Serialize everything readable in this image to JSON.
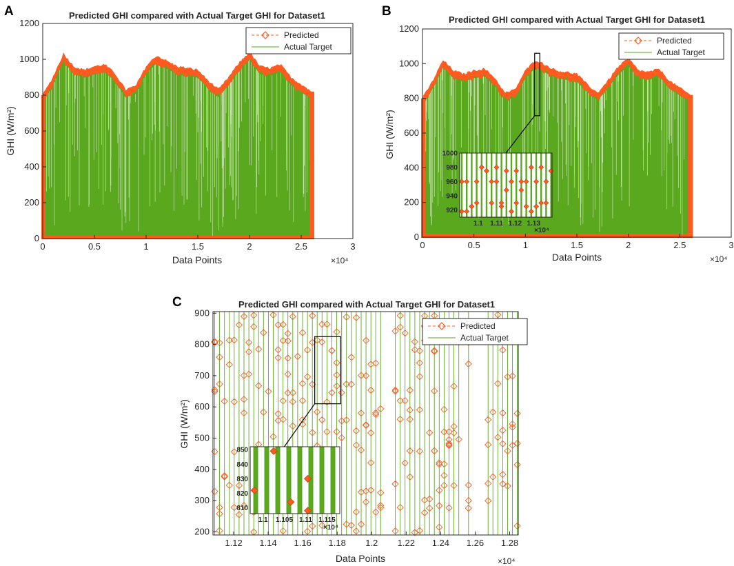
{
  "colors": {
    "predicted": "#ff5a1f",
    "actual": "#5aa81e",
    "axis": "#262626"
  },
  "chart_data": [
    {
      "panel": "A",
      "type": "line",
      "title": "Predicted GHI compared with Actual Target GHI for Dataset1",
      "xlabel": "Data Points",
      "ylabel": "GHI (W/m²)",
      "x_exponent": "×10⁴",
      "xlim": [
        0,
        3
      ],
      "ylim": [
        0,
        1200
      ],
      "xticks": [
        0,
        0.5,
        1,
        1.5,
        2,
        2.5,
        3
      ],
      "xtick_labels": [
        "0",
        "0.5",
        "1",
        "1.5",
        "2",
        "2.5",
        "3"
      ],
      "yticks": [
        0,
        200,
        400,
        600,
        800,
        1000,
        1200
      ],
      "ytick_labels": [
        "0",
        "200",
        "400",
        "600",
        "800",
        "1000",
        "1200"
      ],
      "legend": [
        "Predicted",
        "Actual Target"
      ],
      "legend_position": "top-right",
      "series": [
        {
          "name": "Predicted (daily peak envelope)",
          "x": [
            0,
            0.1,
            0.2,
            0.3,
            0.4,
            0.5,
            0.6,
            0.7,
            0.8,
            0.9,
            1.0,
            1.1,
            1.2,
            1.3,
            1.4,
            1.5,
            1.6,
            1.7,
            1.8,
            1.9,
            2.0,
            2.1,
            2.2,
            2.3,
            2.4,
            2.5,
            2.6
          ],
          "values": [
            800,
            900,
            1030,
            960,
            940,
            960,
            970,
            920,
            830,
            850,
            960,
            1020,
            990,
            960,
            950,
            940,
            880,
            830,
            900,
            980,
            1040,
            960,
            950,
            970,
            900,
            860,
            820
          ]
        },
        {
          "name": "Actual Target (daily peak envelope)",
          "x": [
            0,
            0.1,
            0.2,
            0.3,
            0.4,
            0.5,
            0.6,
            0.7,
            0.8,
            0.9,
            1.0,
            1.1,
            1.2,
            1.3,
            1.4,
            1.5,
            1.6,
            1.7,
            1.8,
            1.9,
            2.0,
            2.1,
            2.2,
            2.3,
            2.4,
            2.5,
            2.6
          ],
          "values": [
            780,
            880,
            1010,
            940,
            920,
            940,
            950,
            900,
            810,
            830,
            940,
            1000,
            970,
            940,
            930,
            920,
            860,
            810,
            880,
            960,
            1020,
            940,
            930,
            950,
            880,
            840,
            800
          ]
        }
      ]
    },
    {
      "panel": "B",
      "type": "line",
      "title": "Predicted GHI compared with Actual Target GHI for Dataset1",
      "xlabel": "Data Points",
      "ylabel": "GHI (W/m²)",
      "x_exponent": "×10⁴",
      "xlim": [
        0,
        3
      ],
      "ylim": [
        0,
        1200
      ],
      "xticks": [
        0,
        0.5,
        1,
        1.5,
        2,
        2.5,
        3
      ],
      "xtick_labels": [
        "0",
        "0.5",
        "1",
        "1.5",
        "2",
        "2.5",
        "3"
      ],
      "yticks": [
        0,
        200,
        400,
        600,
        800,
        1000,
        1200
      ],
      "ytick_labels": [
        "0",
        "200",
        "400",
        "600",
        "800",
        "1000",
        "1200"
      ],
      "legend": [
        "Predicted",
        "Actual Target"
      ],
      "legend_position": "top-right",
      "zoom_region": {
        "xlim": [
          1.09,
          1.14
        ],
        "ylim": [
          700,
          1060
        ]
      },
      "inset": {
        "xlim": [
          1.09,
          1.14
        ],
        "ylim": [
          910,
          1000
        ],
        "xticks": [
          1.1,
          1.11,
          1.12,
          1.13
        ],
        "xtick_labels": [
          "1.1",
          "1.11",
          "1.12",
          "1.13"
        ],
        "yticks": [
          920,
          940,
          960,
          980,
          1000
        ],
        "ytick_labels": [
          "920",
          "940",
          "960",
          "980",
          "1000"
        ],
        "x_exponent": "×10⁴"
      },
      "series": [
        {
          "name": "Predicted (daily peak envelope)",
          "x": [
            0,
            0.1,
            0.2,
            0.3,
            0.4,
            0.5,
            0.6,
            0.7,
            0.8,
            0.9,
            1.0,
            1.1,
            1.2,
            1.3,
            1.4,
            1.5,
            1.6,
            1.7,
            1.8,
            1.9,
            2.0,
            2.1,
            2.2,
            2.3,
            2.4,
            2.5,
            2.6
          ],
          "values": [
            800,
            900,
            1020,
            960,
            940,
            960,
            970,
            920,
            830,
            850,
            960,
            1020,
            990,
            960,
            950,
            940,
            880,
            830,
            900,
            980,
            1030,
            960,
            950,
            970,
            900,
            860,
            820
          ]
        },
        {
          "name": "Actual Target (daily peak envelope)",
          "x": [
            0,
            0.1,
            0.2,
            0.3,
            0.4,
            0.5,
            0.6,
            0.7,
            0.8,
            0.9,
            1.0,
            1.1,
            1.2,
            1.3,
            1.4,
            1.5,
            1.6,
            1.7,
            1.8,
            1.9,
            2.0,
            2.1,
            2.2,
            2.3,
            2.4,
            2.5,
            2.6
          ],
          "values": [
            780,
            880,
            1000,
            940,
            920,
            940,
            950,
            900,
            810,
            830,
            940,
            1000,
            970,
            940,
            930,
            920,
            860,
            810,
            880,
            960,
            1010,
            940,
            930,
            950,
            880,
            840,
            800
          ]
        }
      ]
    },
    {
      "panel": "C",
      "type": "line",
      "title": "Predicted GHI compared with Actual Target GHI for Dataset1",
      "xlabel": "Data Points",
      "ylabel": "GHI (W/m²)",
      "x_exponent": "×10⁴",
      "xlim": [
        1.108,
        1.285
      ],
      "ylim": [
        190,
        905
      ],
      "xticks": [
        1.12,
        1.14,
        1.16,
        1.18,
        1.2,
        1.22,
        1.24,
        1.26,
        1.28
      ],
      "xtick_labels": [
        "1.12",
        "1.14",
        "1.16",
        "1.18",
        "1.2",
        "1.22",
        "1.24",
        "1.26",
        "1.28"
      ],
      "yticks": [
        200,
        300,
        400,
        500,
        600,
        700,
        800,
        900
      ],
      "ytick_labels": [
        "200",
        "300",
        "400",
        "500",
        "600",
        "700",
        "800",
        "900"
      ],
      "legend": [
        "Predicted",
        "Actual Target"
      ],
      "legend_position": "top-right",
      "zoom_region": {
        "xlim": [
          1.167,
          1.182
        ],
        "ylim": [
          610,
          825
        ]
      },
      "inset": {
        "xlim": [
          1.097,
          1.118
        ],
        "ylim": [
          806,
          852
        ],
        "xticks": [
          1.1,
          1.105,
          1.11,
          1.115
        ],
        "xtick_labels": [
          "1.1",
          "1.105",
          "1.11",
          "1.115"
        ],
        "yticks": [
          810,
          820,
          830,
          840,
          850
        ],
        "ytick_labels": [
          "810",
          "820",
          "830",
          "840",
          "850"
        ],
        "x_exponent": "×10⁴",
        "predicted_points": [
          [
            1.098,
            822
          ],
          [
            1.1025,
            849
          ],
          [
            1.1065,
            814
          ],
          [
            1.1105,
            830
          ],
          [
            1.1105,
            808
          ]
        ]
      }
    }
  ]
}
